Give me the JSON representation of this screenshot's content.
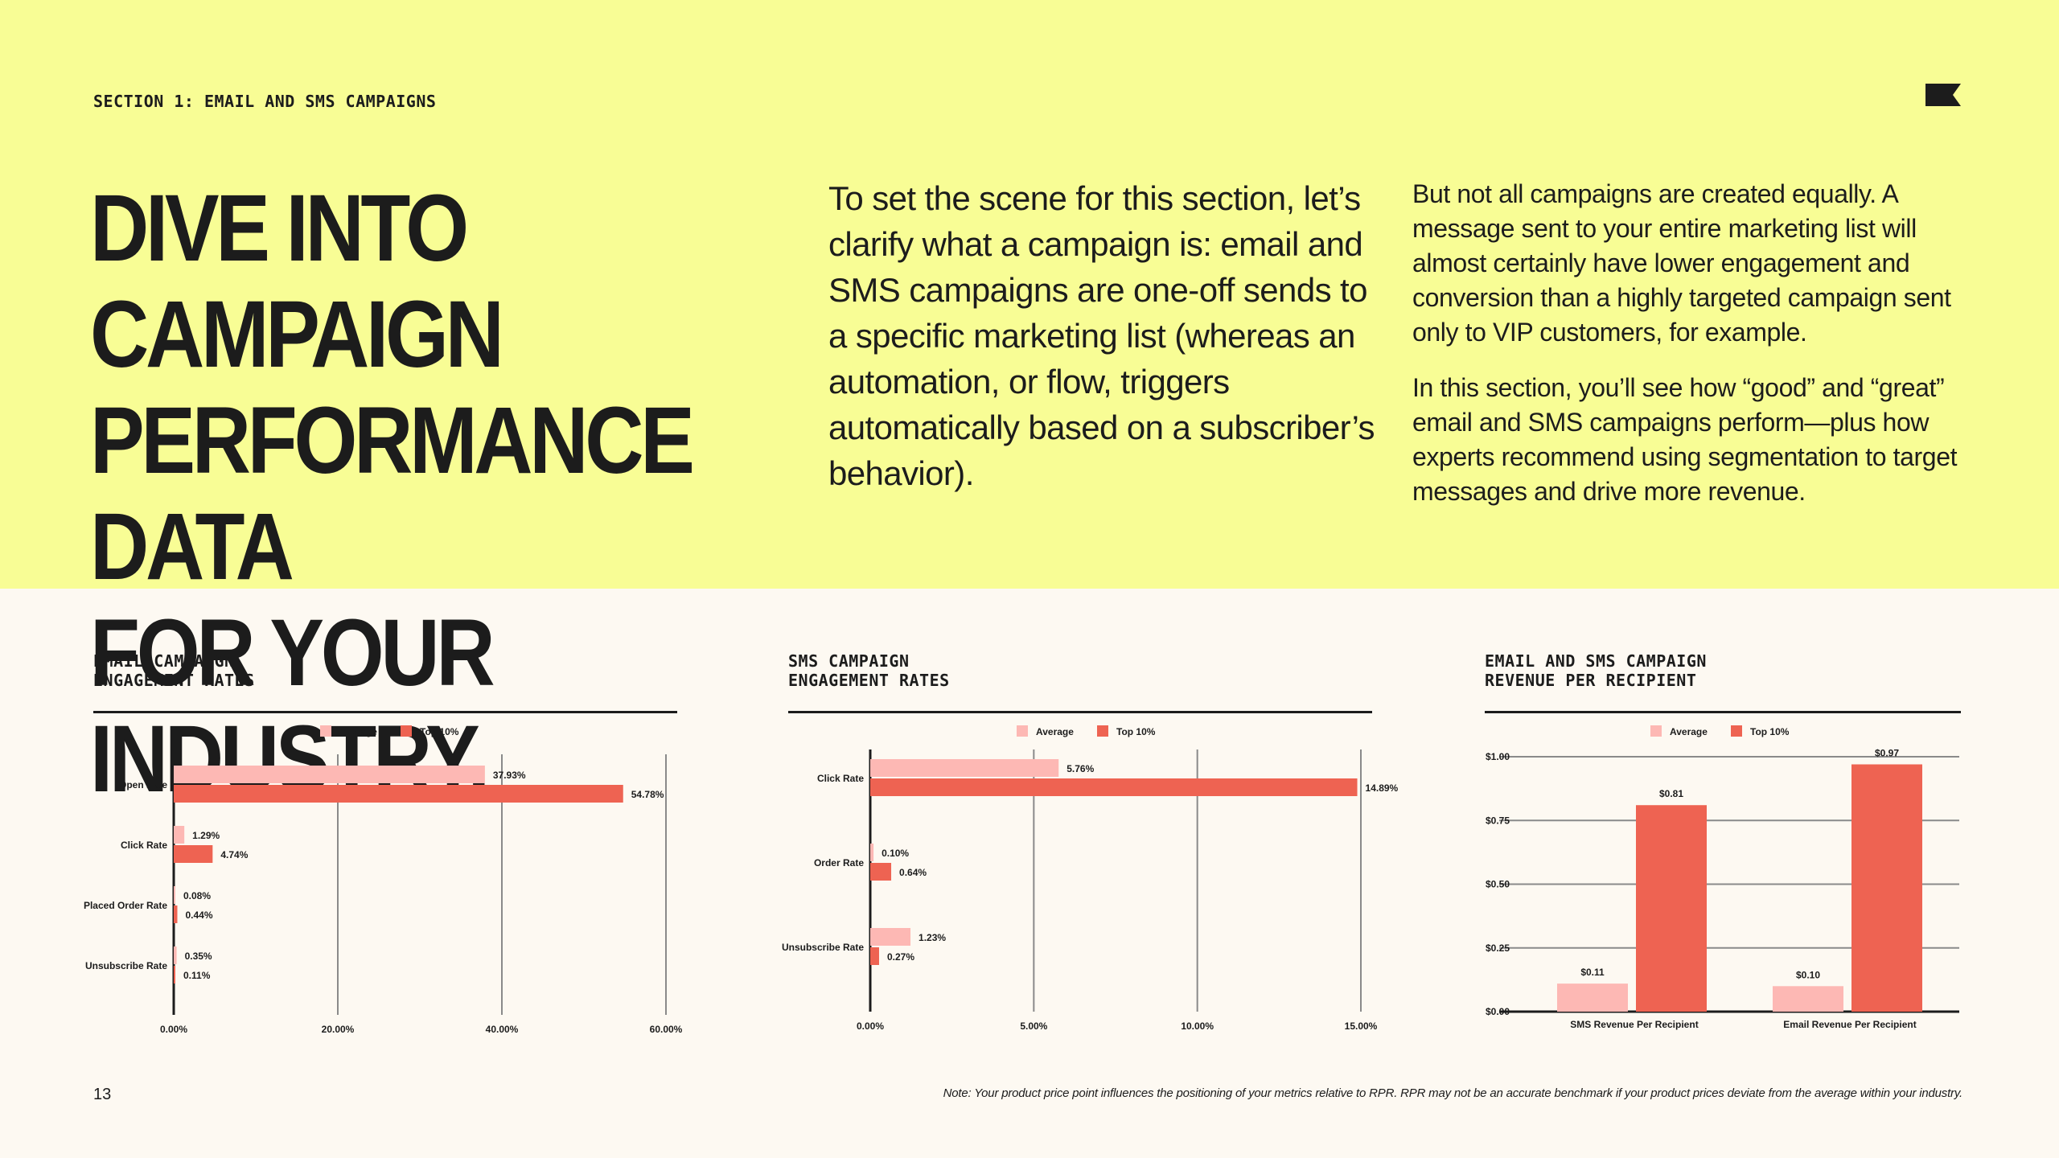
{
  "header": {
    "section_label": "SECTION 1: EMAIL AND SMS CAMPAIGNS",
    "headline_lines": [
      "DIVE INTO CAMPAIGN",
      "PERFORMANCE DATA",
      "FOR YOUR INDUSTRY."
    ],
    "intro": "To set the scene for this section, let’s clarify what a campaign is: email and SMS campaigns are one-off sends to a specific marketing list (whereas an automation, or flow, triggers automatically based on a subscriber’s behavior).",
    "para1": "But not all campaigns are created equally. A message sent to your entire marketing list will almost certainly have lower engagement and conversion than a highly targeted campaign sent only to VIP customers, for example.",
    "para2": "In this section, you’ll see how “good” and “great” email and SMS campaigns perform—plus how experts recommend using segmentation to target messages and drive more revenue."
  },
  "footer": {
    "page_number": "13",
    "note": "Note: Your product price point influences the positioning of your metrics relative to RPR. RPR may not be an accurate benchmark if your product prices deviate from the average within your industry."
  },
  "colors": {
    "background_top": "#f8fd95",
    "background_bottom": "#fdf9f2",
    "average": "#fdb8b4",
    "top10": "#ee6352",
    "ink": "#1c1c1c"
  },
  "chart_data": [
    {
      "type": "bar",
      "orientation": "horizontal",
      "title_lines": [
        "EMAIL CAMPAIGN",
        "ENGAGEMENT RATES"
      ],
      "legend": [
        "Average",
        "Top 10%"
      ],
      "legend_position": "top",
      "categories": [
        "Open Rate",
        "Click Rate",
        "Placed Order Rate",
        "Unsubscribe Rate"
      ],
      "series": [
        {
          "name": "Average",
          "values": [
            37.93,
            1.29,
            0.08,
            0.35
          ],
          "labels": [
            "37.93%",
            "1.29%",
            "0.08%",
            "0.35%"
          ]
        },
        {
          "name": "Top 10%",
          "values": [
            54.78,
            4.74,
            0.44,
            0.11
          ],
          "labels": [
            "54.78%",
            "4.74%",
            "0.44%",
            "0.11%"
          ]
        }
      ],
      "xlim": [
        0,
        60
      ],
      "xticks": [
        0,
        20,
        40,
        60
      ],
      "xtick_labels": [
        "0.00%",
        "20.00%",
        "40.00%",
        "60.00%"
      ],
      "grid": "vertical"
    },
    {
      "type": "bar",
      "orientation": "horizontal",
      "title_lines": [
        "SMS CAMPAIGN",
        "ENGAGEMENT RATES"
      ],
      "legend": [
        "Average",
        "Top 10%"
      ],
      "legend_position": "top",
      "categories": [
        "Click Rate",
        "Order Rate",
        "Unsubscribe Rate"
      ],
      "series": [
        {
          "name": "Average",
          "values": [
            5.76,
            0.1,
            1.23
          ],
          "labels": [
            "5.76%",
            "0.10%",
            "1.23%"
          ]
        },
        {
          "name": "Top 10%",
          "values": [
            14.89,
            0.64,
            0.27
          ],
          "labels": [
            "14.89%",
            "0.64%",
            "0.27%"
          ]
        }
      ],
      "xlim": [
        0,
        15
      ],
      "xticks": [
        0,
        5,
        10,
        15
      ],
      "xtick_labels": [
        "0.00%",
        "5.00%",
        "10.00%",
        "15.00%"
      ],
      "grid": "vertical"
    },
    {
      "type": "bar",
      "orientation": "vertical",
      "title_lines": [
        "EMAIL AND SMS CAMPAIGN",
        "REVENUE PER RECIPIENT"
      ],
      "legend": [
        "Average",
        "Top 10%"
      ],
      "legend_position": "top",
      "categories": [
        "SMS Revenue Per Recipient",
        "Email Revenue Per Recipient"
      ],
      "series": [
        {
          "name": "Average",
          "values": [
            0.11,
            0.1
          ],
          "labels": [
            "$0.11",
            "$0.10"
          ]
        },
        {
          "name": "Top 10%",
          "values": [
            0.81,
            0.97
          ],
          "labels": [
            "$0.81",
            "$0.97"
          ]
        }
      ],
      "ylim": [
        0,
        1
      ],
      "yticks": [
        0,
        0.25,
        0.5,
        0.75,
        1
      ],
      "ytick_labels": [
        "$0.00",
        "$0.25",
        "$0.50",
        "$0.75",
        "$1.00"
      ],
      "grid": "horizontal"
    }
  ]
}
